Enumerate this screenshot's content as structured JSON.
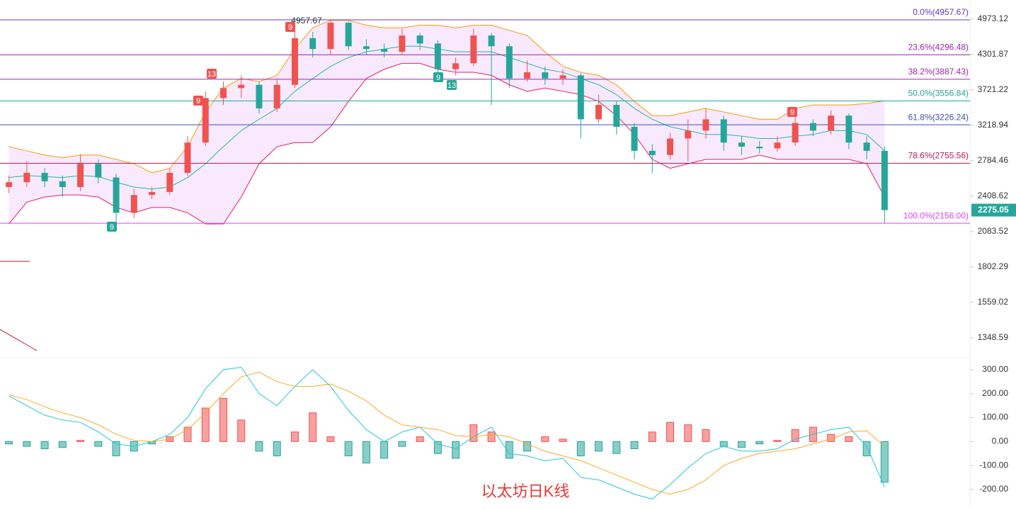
{
  "watermark": "以太坊日K线",
  "chart_data": [
    {
      "type": "candlestick",
      "yscale": "log",
      "ylim": [
        1243,
        5378
      ],
      "yticks": [
        4973.12,
        4301.87,
        3721.22,
        3218.94,
        2784.46,
        2408.62,
        2083.52,
        1802.29,
        1559.02,
        1348.59
      ],
      "up_color": "#ef5350",
      "down_color": "#26a69a",
      "candles": [
        [
          2500,
          2620,
          2440,
          2550
        ],
        [
          2550,
          2780,
          2500,
          2650
        ],
        [
          2650,
          2700,
          2500,
          2560
        ],
        [
          2560,
          2620,
          2400,
          2500
        ],
        [
          2500,
          2860,
          2460,
          2750
        ],
        [
          2750,
          2800,
          2540,
          2600
        ],
        [
          2600,
          2640,
          2160,
          2250
        ],
        [
          2250,
          2480,
          2200,
          2420
        ],
        [
          2420,
          2500,
          2380,
          2450
        ],
        [
          2450,
          2700,
          2420,
          2650
        ],
        [
          2650,
          3080,
          2620,
          3000
        ],
        [
          3000,
          3700,
          2960,
          3600
        ],
        [
          3600,
          3850,
          3500,
          3750
        ],
        [
          3750,
          3950,
          3600,
          3800
        ],
        [
          3800,
          3850,
          3380,
          3450
        ],
        [
          3450,
          3900,
          3400,
          3800
        ],
        [
          3800,
          4800,
          3750,
          4600
        ],
        [
          4600,
          4720,
          4250,
          4400
        ],
        [
          4400,
          4957.67,
          4300,
          4900
        ],
        [
          4900,
          4930,
          4380,
          4450
        ],
        [
          4450,
          4580,
          4300,
          4400
        ],
        [
          4400,
          4500,
          4250,
          4350
        ],
        [
          4350,
          4780,
          4300,
          4650
        ],
        [
          4650,
          4700,
          4380,
          4500
        ],
        [
          4500,
          4560,
          3900,
          4050
        ],
        [
          4050,
          4250,
          3950,
          4150
        ],
        [
          4150,
          4780,
          4100,
          4650
        ],
        [
          4650,
          4700,
          3500,
          4450
        ],
        [
          4450,
          4500,
          3750,
          3900
        ],
        [
          3900,
          4200,
          3850,
          4000
        ],
        [
          4000,
          4100,
          3800,
          3900
        ],
        [
          3900,
          4050,
          3800,
          3950
        ],
        [
          3950,
          3980,
          3050,
          3300
        ],
        [
          3300,
          3650,
          3250,
          3500
        ],
        [
          3500,
          3560,
          3100,
          3200
        ],
        [
          3200,
          3250,
          2800,
          2900
        ],
        [
          2900,
          2980,
          2650,
          2850
        ],
        [
          2850,
          3120,
          2800,
          3050
        ],
        [
          3050,
          3300,
          2780,
          3150
        ],
        [
          3150,
          3450,
          3050,
          3300
        ],
        [
          3300,
          3350,
          2900,
          3000
        ],
        [
          3000,
          3080,
          2850,
          2950
        ],
        [
          2950,
          3020,
          2870,
          2930
        ],
        [
          2930,
          3080,
          2890,
          3000
        ],
        [
          3000,
          3330,
          2960,
          3250
        ],
        [
          3250,
          3300,
          3080,
          3150
        ],
        [
          3150,
          3420,
          3100,
          3350
        ],
        [
          3350,
          3380,
          2920,
          3000
        ],
        [
          3000,
          3080,
          2800,
          2900
        ],
        [
          2900,
          2950,
          2156,
          2275.05
        ]
      ],
      "bands": {
        "upper": [
          2950,
          2900,
          2850,
          2820,
          2850,
          2850,
          2800,
          2750,
          2650,
          2700,
          2950,
          3400,
          3750,
          3900,
          3850,
          3950,
          4400,
          4800,
          4950,
          4950,
          4850,
          4800,
          4800,
          4850,
          4850,
          4800,
          4850,
          4850,
          4750,
          4650,
          4350,
          4100,
          4000,
          3950,
          3800,
          3550,
          3350,
          3350,
          3400,
          3450,
          3400,
          3350,
          3300,
          3300,
          3450,
          3500,
          3500,
          3500,
          3520,
          3560
        ],
        "middle": [
          2600,
          2620,
          2610,
          2600,
          2620,
          2610,
          2550,
          2500,
          2480,
          2500,
          2600,
          2750,
          2950,
          3150,
          3300,
          3450,
          3700,
          3900,
          4100,
          4250,
          4350,
          4400,
          4450,
          4450,
          4400,
          4350,
          4350,
          4350,
          4250,
          4150,
          4050,
          4000,
          3900,
          3800,
          3650,
          3450,
          3300,
          3200,
          3150,
          3100,
          3100,
          3080,
          3050,
          3050,
          3080,
          3100,
          3150,
          3150,
          3100,
          2900
        ],
        "lower": [
          2150,
          2350,
          2400,
          2420,
          2420,
          2400,
          2300,
          2250,
          2300,
          2300,
          2250,
          2150,
          2150,
          2400,
          2750,
          2950,
          3000,
          3000,
          3200,
          3550,
          3900,
          4050,
          4150,
          4150,
          4050,
          4000,
          4000,
          3950,
          3800,
          3700,
          3750,
          3700,
          3650,
          3550,
          3350,
          3100,
          2800,
          2700,
          2750,
          2800,
          2800,
          2800,
          2850,
          2800,
          2800,
          2800,
          2800,
          2800,
          2750,
          2400
        ],
        "colors": {
          "upper": "#ff9800",
          "middle": "#26b6a8",
          "lower": "#e91e63",
          "fill": "rgba(214,120,255,0.16)"
        }
      },
      "fib_levels": [
        {
          "value": 4957.67,
          "label": "0.0%(4957.67)"
        },
        {
          "value": 4296.48,
          "label": "23.6%(4296.48)"
        },
        {
          "value": 3887.43,
          "label": "38.2%(3887.43)"
        },
        {
          "value": 3556.84,
          "label": "50.0%(3556.84)"
        },
        {
          "value": 3226.24,
          "label": "61.8%(3226.24)"
        },
        {
          "value": 2755.56,
          "label": "78.6%(2755.56)"
        },
        {
          "value": 2156.0,
          "label": "100.0%(2156.00)"
        }
      ],
      "fib_colors": [
        "#673ab7",
        "#9c27b0",
        "#9c27b0",
        "#26a69a",
        "#3f51b5",
        "#c2185b",
        "#e040fb"
      ],
      "peak_label": 4957.67,
      "last_price": 2275.05,
      "td_labels": [
        "9",
        "13",
        "9",
        "9",
        "9",
        "13",
        "9"
      ]
    },
    {
      "type": "macd",
      "ylim": [
        -271,
        350
      ],
      "yticks": [
        {
          "value": 300,
          "label": "300.00"
        },
        {
          "value": 200,
          "label": "200.00"
        },
        {
          "value": 100,
          "label": "100.00"
        },
        {
          "value": 0,
          "label": "0.00"
        },
        {
          "value": -100,
          "label": "-100.00"
        },
        {
          "value": -200,
          "label": "-200.00"
        }
      ],
      "histogram": [
        -10,
        -20,
        -30,
        -25,
        5,
        -20,
        -60,
        -40,
        -10,
        20,
        60,
        140,
        180,
        90,
        -40,
        -60,
        40,
        120,
        20,
        -60,
        -90,
        -70,
        -20,
        20,
        -50,
        -70,
        70,
        40,
        -70,
        -40,
        20,
        10,
        -60,
        -40,
        -50,
        -30,
        40,
        80,
        70,
        50,
        -20,
        -25,
        -10,
        5,
        50,
        60,
        30,
        20,
        -60,
        -170
      ],
      "dif": [
        190,
        150,
        110,
        90,
        80,
        40,
        -10,
        -20,
        0,
        30,
        100,
        220,
        300,
        310,
        200,
        150,
        230,
        300,
        230,
        130,
        50,
        0,
        40,
        60,
        -10,
        -30,
        20,
        60,
        -50,
        -60,
        -80,
        -70,
        -150,
        -160,
        -190,
        -220,
        -240,
        -180,
        -110,
        -50,
        -20,
        -40,
        -40,
        -30,
        10,
        30,
        50,
        60,
        -20,
        -190
      ],
      "dea": [
        195,
        175,
        145,
        120,
        100,
        70,
        30,
        5,
        0,
        10,
        50,
        120,
        200,
        270,
        290,
        250,
        230,
        230,
        240,
        210,
        170,
        110,
        70,
        60,
        50,
        25,
        20,
        30,
        20,
        -10,
        -40,
        -60,
        -80,
        -110,
        -140,
        -170,
        -200,
        -220,
        -200,
        -160,
        -100,
        -70,
        -50,
        -40,
        -30,
        -10,
        10,
        40,
        45,
        -20
      ],
      "up_color": "#ef5350",
      "down_color": "#26a69a",
      "dif_color": "#26c6da",
      "dea_color": "#ffa726"
    }
  ]
}
